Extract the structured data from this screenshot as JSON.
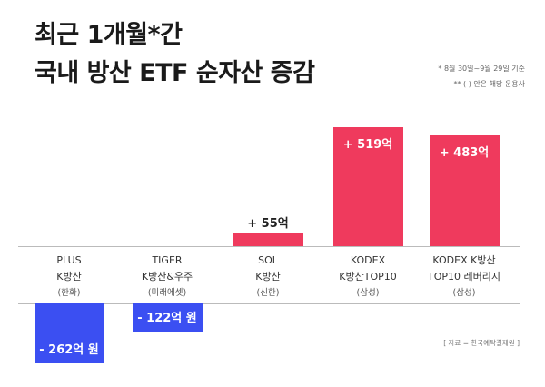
{
  "title_line1": "최근 1개월*간",
  "title_line2": "국내 방산 ETF 순자산 증감",
  "notes": [
    "* 8월 30일~9월 29일 기준",
    "** ( ) 안은 해당 운용사"
  ],
  "source": "[ 자료 = 한국예탁결제원 ]",
  "colors": {
    "positive": "#ef3a5d",
    "negative": "#3b4ff2"
  },
  "chart_data": {
    "type": "bar",
    "unit": "억 원",
    "categories": [
      {
        "name1": "PLUS",
        "name2": "K방산",
        "manager": "(한화)"
      },
      {
        "name1": "TIGER",
        "name2": "K방산&우주",
        "manager": "(미래에셋)"
      },
      {
        "name1": "SOL",
        "name2": "K방산",
        "manager": "(신한)"
      },
      {
        "name1": "KODEX",
        "name2": "K방산TOP10",
        "manager": "(삼성)"
      },
      {
        "name1": "KODEX K방산",
        "name2": "TOP10 레버리지",
        "manager": "(삼성)"
      }
    ],
    "values": [
      -262,
      -122,
      55,
      519,
      483
    ],
    "data_labels": [
      "- 262억 원",
      "- 122억 원",
      "+ 55억",
      "+ 519억",
      "+ 483억"
    ]
  }
}
